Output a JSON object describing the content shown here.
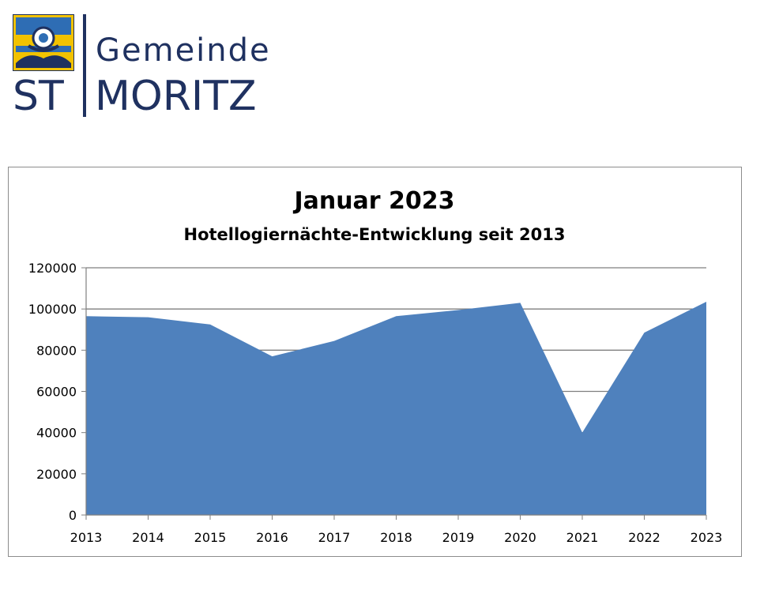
{
  "logo": {
    "line1": "Gemeinde",
    "line2_left": "ST",
    "line2_right": "MORITZ",
    "colors": {
      "navy": "#1f3160",
      "gold": "#f2c200",
      "sky": "#2e6db4"
    }
  },
  "chart_data": {
    "type": "area",
    "title": "Januar 2023",
    "subtitle": "Hotellogiernächte-Entwicklung seit 2013",
    "xlabel": "",
    "ylabel": "",
    "categories": [
      "2013",
      "2014",
      "2015",
      "2016",
      "2017",
      "2018",
      "2019",
      "2020",
      "2021",
      "2022",
      "2023"
    ],
    "series": [
      {
        "values": [
          96500,
          96000,
          92500,
          77000,
          84500,
          96500,
          99500,
          103000,
          40000,
          88500,
          103500
        ]
      }
    ],
    "ylim": [
      0,
      120000
    ],
    "yticks": [
      0,
      20000,
      40000,
      60000,
      80000,
      100000,
      120000
    ],
    "grid": true,
    "legend": "none",
    "colors": {
      "fill": "#4f81bd",
      "gridline": "#7f7f7f",
      "axis": "#808080"
    }
  }
}
